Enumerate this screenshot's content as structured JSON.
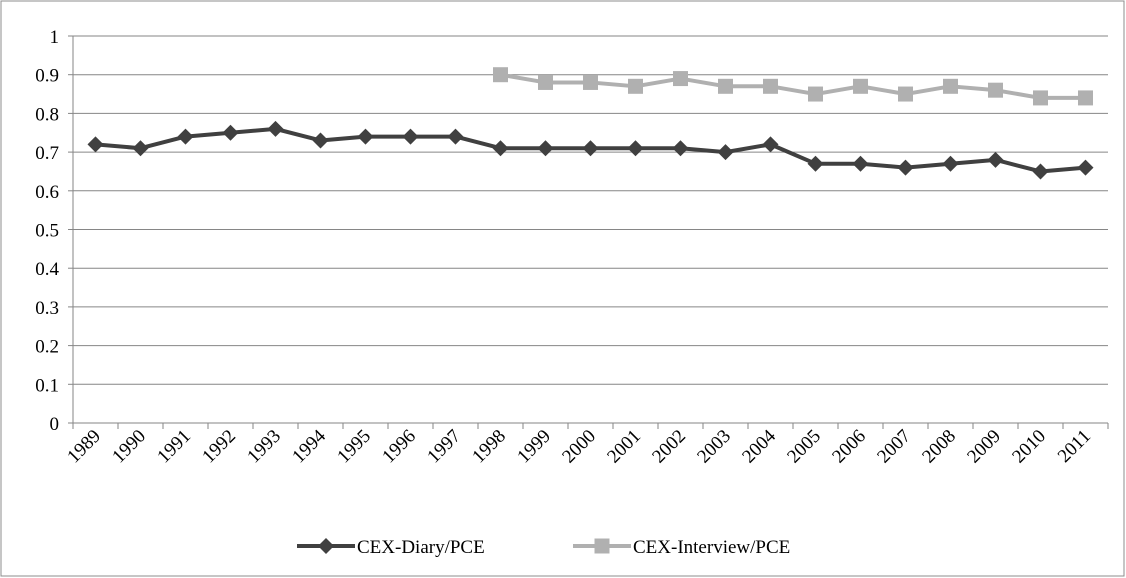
{
  "chart_data": {
    "type": "line",
    "categories": [
      "1989",
      "1990",
      "1991",
      "1992",
      "1993",
      "1994",
      "1995",
      "1996",
      "1997",
      "1998",
      "1999",
      "2000",
      "2001",
      "2002",
      "2003",
      "2004",
      "2005",
      "2006",
      "2007",
      "2008",
      "2009",
      "2010",
      "2011"
    ],
    "series": [
      {
        "name": "CEX-Diary/PCE",
        "color": "#404040",
        "marker": "diamond",
        "values": [
          0.72,
          0.71,
          0.74,
          0.75,
          0.76,
          0.73,
          0.74,
          0.74,
          0.74,
          0.71,
          0.71,
          0.71,
          0.71,
          0.71,
          0.7,
          0.72,
          0.67,
          0.67,
          0.66,
          0.67,
          0.68,
          0.65,
          0.66
        ]
      },
      {
        "name": "CEX-Interview/PCE",
        "color": "#b0b0b0",
        "marker": "square",
        "values": [
          null,
          null,
          null,
          null,
          null,
          null,
          null,
          null,
          null,
          0.9,
          0.88,
          0.88,
          0.87,
          0.89,
          0.87,
          0.87,
          0.85,
          0.87,
          0.85,
          0.87,
          0.86,
          0.84,
          0.84
        ]
      }
    ],
    "ylim": [
      0,
      1
    ],
    "yticks": [
      0,
      0.1,
      0.2,
      0.3,
      0.4,
      0.5,
      0.6,
      0.7,
      0.8,
      0.9,
      1
    ],
    "grid": true,
    "legend": "bottom"
  }
}
